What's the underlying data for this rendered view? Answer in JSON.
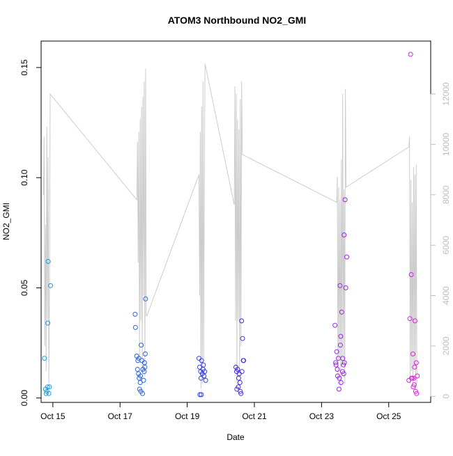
{
  "chart_data": {
    "type": "scatter",
    "title": "ATOM3 Northbound NO2_GMI",
    "xlabel": "Date",
    "ylabel": "NO2_GMI",
    "xlim": [
      14.65,
      26.25
    ],
    "ylim": [
      -0.002,
      0.162
    ],
    "y2lim": [
      -240,
      14100
    ],
    "x_ticks": [
      15,
      17,
      19,
      21,
      23,
      25
    ],
    "x_tick_labels": [
      "Oct 15",
      "Oct 17",
      "Oct 19",
      "Oct 21",
      "Oct 23",
      "Oct 25"
    ],
    "y_ticks": [
      0.0,
      0.05,
      0.1,
      0.15
    ],
    "y_tick_labels": [
      "0.00",
      "0.05",
      "0.10",
      "0.15"
    ],
    "y2_ticks": [
      0,
      2000,
      4000,
      6000,
      8000,
      10000,
      12000
    ],
    "y2_tick_labels": [
      "0",
      "2000",
      "4000",
      "6000",
      "8000",
      "10000",
      "12000"
    ],
    "grid": false,
    "colors": {
      "points_start": "#1a9ee0",
      "points_mid": "#3a2de0",
      "points_end": "#e020e0",
      "altitude_line": "#cccccc",
      "right_axis": "#bebebe",
      "frame": "#000000"
    },
    "series": [
      {
        "type": "scatter",
        "points": [
          [
            14.75,
            0.018
          ],
          [
            14.78,
            0.004
          ],
          [
            14.8,
            0.002
          ],
          [
            14.82,
            0.003
          ],
          [
            14.84,
            0.005
          ],
          [
            14.85,
            0.034
          ],
          [
            14.86,
            0.062
          ],
          [
            14.88,
            0.002
          ],
          [
            14.9,
            0.005
          ],
          [
            14.93,
            0.051
          ],
          [
            17.45,
            0.038
          ],
          [
            17.46,
            0.032
          ],
          [
            17.5,
            0.019
          ],
          [
            17.52,
            0.013
          ],
          [
            17.53,
            0.017
          ],
          [
            17.55,
            0.011
          ],
          [
            17.57,
            0.009
          ],
          [
            17.58,
            0.004
          ],
          [
            17.6,
            0.007
          ],
          [
            17.62,
            0.003
          ],
          [
            17.63,
            0.024
          ],
          [
            17.65,
            0.017
          ],
          [
            17.67,
            0.002
          ],
          [
            17.68,
            0.013
          ],
          [
            17.7,
            0.008
          ],
          [
            17.72,
            0.012
          ],
          [
            17.75,
            0.02
          ],
          [
            17.76,
            0.045
          ],
          [
            17.73,
            0.016
          ],
          [
            17.74,
            0.014
          ],
          [
            17.61,
            0.01
          ],
          [
            17.56,
            0.018
          ],
          [
            19.35,
            0.018
          ],
          [
            19.37,
            0.014
          ],
          [
            19.38,
            0.0015
          ],
          [
            19.4,
            0.012
          ],
          [
            19.42,
            0.0015
          ],
          [
            19.43,
            0.017
          ],
          [
            19.45,
            0.011
          ],
          [
            19.47,
            0.013
          ],
          [
            19.5,
            0.01
          ],
          [
            19.52,
            0.012
          ],
          [
            19.55,
            0.008
          ],
          [
            19.48,
            0.015
          ],
          [
            19.41,
            0.009
          ],
          [
            20.45,
            0.014
          ],
          [
            20.48,
            0.004
          ],
          [
            20.5,
            0.013
          ],
          [
            20.52,
            0.005
          ],
          [
            20.55,
            0.011
          ],
          [
            20.57,
            0.007
          ],
          [
            20.58,
            0.003
          ],
          [
            20.6,
            0.002
          ],
          [
            20.62,
            0.035
          ],
          [
            20.65,
            0.027
          ],
          [
            20.67,
            0.017
          ],
          [
            20.68,
            0.017
          ],
          [
            20.53,
            0.009
          ],
          [
            20.47,
            0.012
          ],
          [
            20.63,
            0.012
          ],
          [
            23.4,
            0.033
          ],
          [
            23.42,
            0.016
          ],
          [
            23.45,
            0.021
          ],
          [
            23.47,
            0.013
          ],
          [
            23.5,
            0.018
          ],
          [
            23.52,
            0.004
          ],
          [
            23.53,
            0.009
          ],
          [
            23.55,
            0.051
          ],
          [
            23.57,
            0.028
          ],
          [
            23.6,
            0.039
          ],
          [
            23.62,
            0.012
          ],
          [
            23.65,
            0.015
          ],
          [
            23.67,
            0.074
          ],
          [
            23.7,
            0.09
          ],
          [
            23.72,
            0.05
          ],
          [
            23.75,
            0.064
          ],
          [
            23.58,
            0.007
          ],
          [
            23.63,
            0.018
          ],
          [
            23.48,
            0.01
          ],
          [
            23.68,
            0.016
          ],
          [
            23.56,
            0.024
          ],
          [
            23.66,
            0.011
          ],
          [
            23.43,
            0.015
          ],
          [
            25.6,
            0.008
          ],
          [
            25.63,
            0.036
          ],
          [
            25.65,
            0.156
          ],
          [
            25.67,
            0.056
          ],
          [
            25.7,
            0.009
          ],
          [
            25.72,
            0.02
          ],
          [
            25.75,
            0.009
          ],
          [
            25.77,
            0.014
          ],
          [
            25.78,
            0.035
          ],
          [
            25.8,
            0.003
          ],
          [
            25.82,
            0.016
          ],
          [
            25.85,
            0.01
          ],
          [
            25.83,
            0.002
          ],
          [
            25.73,
            0.005
          ],
          [
            25.68,
            0.009
          ],
          [
            25.76,
            0.006
          ]
        ]
      },
      {
        "type": "line",
        "axis": "right",
        "points": [
          [
            14.72,
            8000
          ],
          [
            14.74,
            10300
          ],
          [
            14.76,
            2000
          ],
          [
            14.78,
            6800
          ],
          [
            14.8,
            1000
          ],
          [
            14.82,
            10700
          ],
          [
            14.84,
            3000
          ],
          [
            14.86,
            9500
          ],
          [
            14.88,
            500
          ],
          [
            14.9,
            4200
          ],
          [
            14.92,
            12000
          ],
          [
            17.5,
            7800
          ],
          [
            17.52,
            10100
          ],
          [
            17.54,
            5300
          ],
          [
            17.56,
            10500
          ],
          [
            17.58,
            1500
          ],
          [
            17.6,
            11000
          ],
          [
            17.62,
            3000
          ],
          [
            17.64,
            11500
          ],
          [
            17.66,
            1000
          ],
          [
            17.68,
            11900
          ],
          [
            17.7,
            4000
          ],
          [
            17.72,
            12500
          ],
          [
            17.74,
            800
          ],
          [
            17.76,
            13000
          ],
          [
            17.78,
            3200
          ],
          [
            17.8,
            3200
          ],
          [
            19.35,
            8800
          ],
          [
            19.37,
            4000
          ],
          [
            19.39,
            10500
          ],
          [
            19.41,
            300
          ],
          [
            19.43,
            11500
          ],
          [
            19.45,
            500
          ],
          [
            19.47,
            12500
          ],
          [
            19.49,
            1500
          ],
          [
            19.51,
            9000
          ],
          [
            19.53,
            13200
          ],
          [
            20.4,
            7600
          ],
          [
            20.42,
            12300
          ],
          [
            20.44,
            3000
          ],
          [
            20.46,
            12000
          ],
          [
            20.48,
            500
          ],
          [
            20.5,
            11000
          ],
          [
            20.52,
            3000
          ],
          [
            20.54,
            10600
          ],
          [
            20.56,
            800
          ],
          [
            20.58,
            11800
          ],
          [
            20.6,
            2000
          ],
          [
            20.62,
            12500
          ],
          [
            20.64,
            9600
          ],
          [
            23.45,
            7700
          ],
          [
            23.47,
            8700
          ],
          [
            23.49,
            500
          ],
          [
            23.51,
            8300
          ],
          [
            23.53,
            1500
          ],
          [
            23.55,
            7800
          ],
          [
            23.57,
            300
          ],
          [
            23.59,
            9400
          ],
          [
            23.61,
            1200
          ],
          [
            23.63,
            12000
          ],
          [
            23.65,
            1500
          ],
          [
            23.67,
            8200
          ],
          [
            23.69,
            500
          ],
          [
            23.71,
            12200
          ],
          [
            23.73,
            8300
          ],
          [
            25.6,
            9900
          ],
          [
            25.62,
            10300
          ],
          [
            25.64,
            500
          ],
          [
            25.66,
            8600
          ],
          [
            25.68,
            1000
          ],
          [
            25.7,
            7700
          ],
          [
            25.72,
            500
          ],
          [
            25.74,
            9100
          ],
          [
            25.76,
            1200
          ],
          [
            25.78,
            8800
          ],
          [
            25.8,
            300
          ],
          [
            25.82,
            9200
          ],
          [
            25.84,
            500
          ]
        ]
      }
    ]
  }
}
